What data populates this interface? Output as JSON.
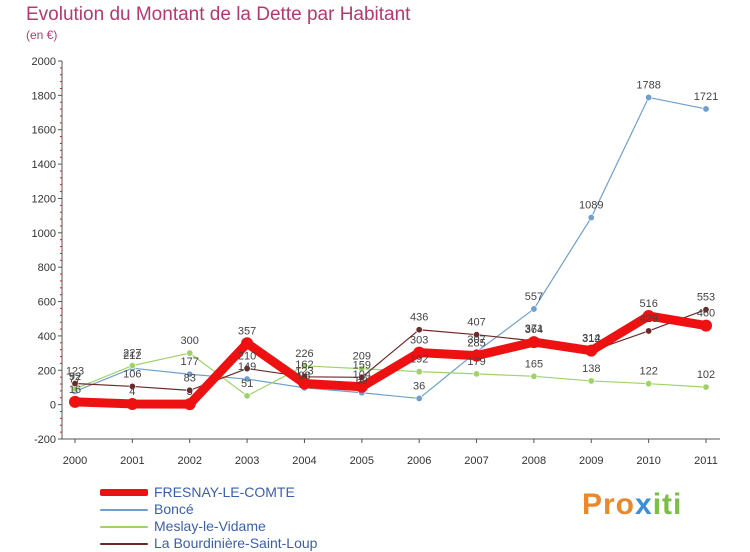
{
  "title": "Evolution du Montant de la Dette par Habitant",
  "subtitle": "(en €)",
  "logo_text": "Proxiti",
  "chart_data": {
    "type": "line",
    "title": "Evolution du Montant de la Dette par Habitant",
    "ylabel": "(en €)",
    "xlabel": "",
    "ylim": [
      -200,
      2000
    ],
    "yticks": [
      "-200",
      "0",
      "200",
      "400",
      "600",
      "800",
      "1000",
      "1200",
      "1400",
      "1600",
      "1800",
      "2000"
    ],
    "categories": [
      "2000",
      "2001",
      "2002",
      "2003",
      "2004",
      "2005",
      "2006",
      "2007",
      "2008",
      "2009",
      "2010",
      "2011"
    ],
    "grid": false,
    "legend_position": "bottom-left",
    "series": [
      {
        "name": "FRESNAY-LE-COMTE",
        "color": "#ee1111",
        "values": [
          16,
          4,
          3,
          357,
          123,
          104,
          303,
          285,
          364,
          314,
          516,
          460
        ],
        "labels": [
          "16",
          "4",
          "3",
          "357",
          "123",
          "104",
          "303",
          "285",
          "364",
          "314",
          "516",
          "460"
        ]
      },
      {
        "name": "Boncé",
        "color": "#6f9fcf",
        "values": [
          77,
          212,
          177,
          149,
          98,
          69,
          36,
          307,
          557,
          1089,
          1788,
          1721
        ],
        "labels": [
          "77",
          "212",
          "177",
          "149",
          "98",
          "69",
          "36",
          "307",
          "557",
          "1089",
          "1788",
          "1721"
        ]
      },
      {
        "name": "Meslay-le-Vidame",
        "color": "#9fd36a",
        "values": [
          92,
          227,
          300,
          51,
          226,
          209,
          192,
          179,
          165,
          138,
          122,
          102
        ],
        "labels": [
          "92",
          "227",
          "300",
          "51",
          "226",
          "209",
          "192",
          "179",
          "165",
          "138",
          "122",
          "102"
        ]
      },
      {
        "name": "La Bourdinière-Saint-Loup",
        "color": "#6b2a2a",
        "values": [
          123,
          106,
          83,
          210,
          162,
          159,
          436,
          407,
          371,
          312,
          429,
          553
        ],
        "labels": [
          "123",
          "106",
          "83",
          "210",
          "162",
          "159",
          "436",
          "407",
          "371",
          "312",
          "429",
          "553"
        ]
      }
    ]
  }
}
